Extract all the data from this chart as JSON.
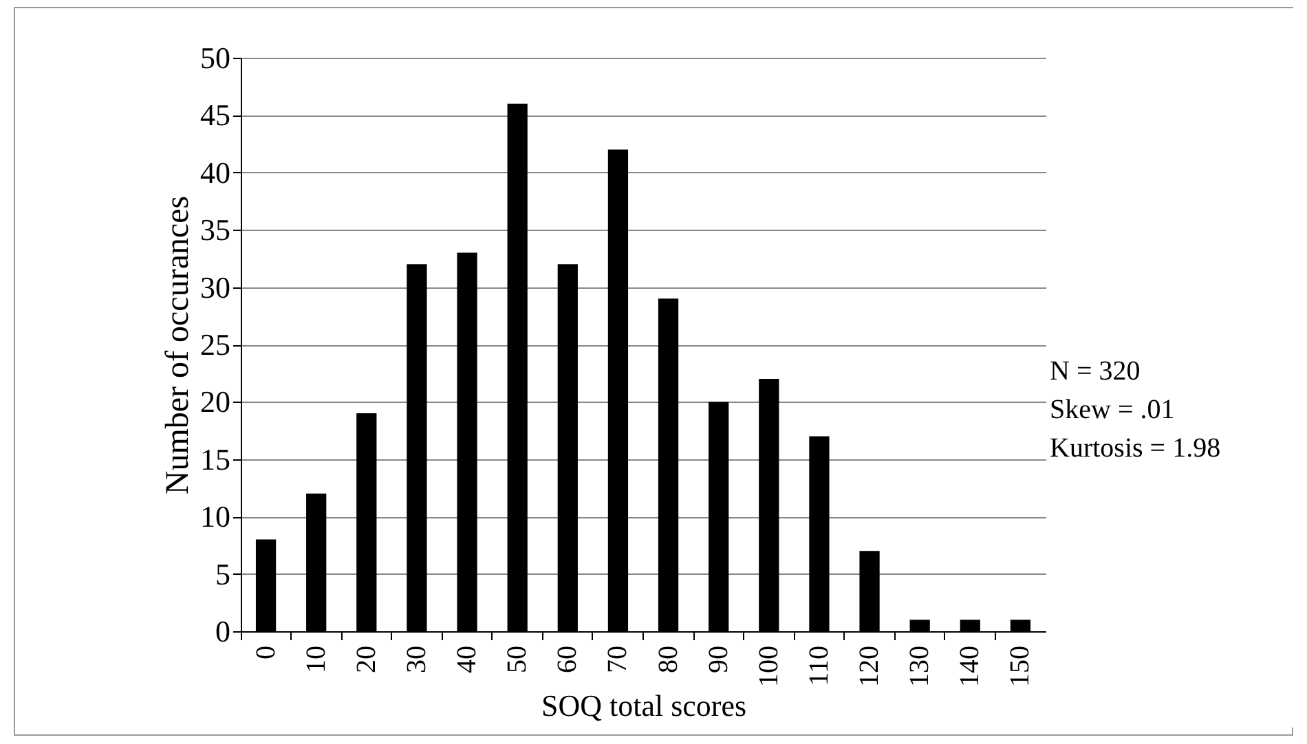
{
  "chart_data": {
    "type": "bar",
    "xlabel": "SOQ total scores",
    "ylabel": "Number of occurances",
    "categories": [
      "0",
      "10",
      "20",
      "30",
      "40",
      "50",
      "60",
      "70",
      "80",
      "90",
      "100",
      "110",
      "120",
      "130",
      "140",
      "150"
    ],
    "values": [
      8,
      12,
      19,
      32,
      33,
      46,
      32,
      42,
      29,
      20,
      22,
      17,
      7,
      1,
      1,
      1
    ],
    "color": "#000000",
    "ylim": [
      0,
      50
    ],
    "yticks": [
      0,
      5,
      10,
      15,
      20,
      25,
      30,
      35,
      40,
      45,
      50
    ],
    "grid": "y",
    "annotations": [
      "N = 320",
      "Skew = .01",
      "Kurtosis = 1.98"
    ]
  }
}
